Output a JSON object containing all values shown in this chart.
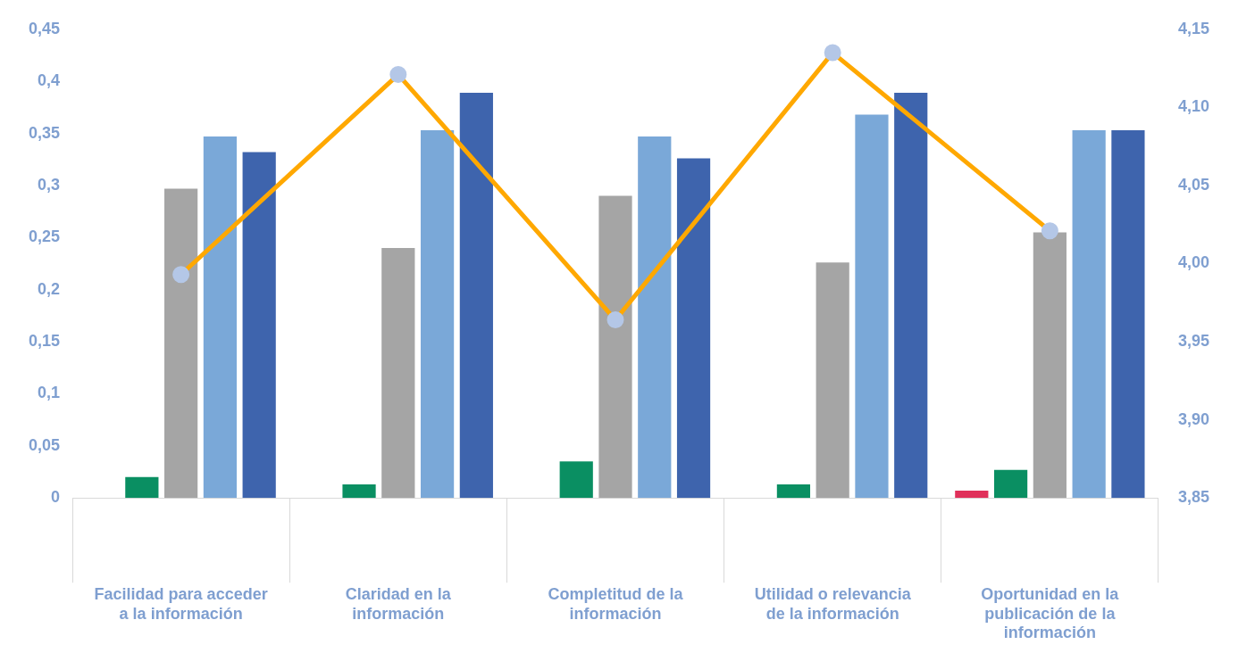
{
  "chart_data": {
    "type": "bar",
    "categories": [
      "Facilidad para acceder a la información",
      "Claridad en la información",
      "Completitud de la información",
      "Utilidad o relevancia de la información",
      "Oportunidad en la publicación de la información"
    ],
    "series": [
      {
        "color": "#e0305a",
        "values": [
          0,
          0,
          0,
          0,
          0.007
        ]
      },
      {
        "color": "#0a8f62",
        "values": [
          0.02,
          0.013,
          0.035,
          0.013,
          0.027
        ]
      },
      {
        "color": "#a5a5a5",
        "values": [
          0.297,
          0.24,
          0.29,
          0.226,
          0.255
        ]
      },
      {
        "color": "#7aa8d8",
        "values": [
          0.347,
          0.353,
          0.347,
          0.368,
          0.353
        ]
      },
      {
        "color": "#3e64ad",
        "values": [
          0.332,
          0.389,
          0.326,
          0.389,
          0.353
        ]
      },
      {
        "type": "line",
        "axis": "y2",
        "color": "#ffa800",
        "marker": "circle",
        "line_style": "solid",
        "values": [
          3.993,
          4.121,
          3.964,
          4.135,
          4.021
        ]
      }
    ],
    "ylim": [
      0,
      0.45
    ],
    "yticks": [
      0,
      {
        "value": 0.05,
        "label": "0,05"
      },
      {
        "value": 0.1,
        "label": "0,1"
      },
      {
        "value": 0.15,
        "label": "0,15"
      },
      {
        "value": 0.2,
        "label": "0,2"
      },
      {
        "value": 0.25,
        "label": "0,25"
      },
      {
        "value": 0.3,
        "label": "0,3"
      },
      {
        "value": 0.35,
        "label": "0,35"
      },
      {
        "value": 0.4,
        "label": "0,4"
      },
      {
        "value": 0.45,
        "label": "0,45"
      }
    ],
    "y2lim": [
      3.85,
      4.15
    ],
    "y2ticks": [
      {
        "value": 3.85,
        "label": "3,85"
      },
      {
        "value": 3.9,
        "label": "3,90"
      },
      {
        "value": 3.95,
        "label": "3,95"
      },
      {
        "value": 4,
        "label": "4,00"
      },
      {
        "value": 4.05,
        "label": "4,05"
      },
      {
        "value": 4.1,
        "label": "4,10"
      },
      {
        "value": 4.15,
        "label": "4,15"
      }
    ],
    "grid": false,
    "legend": false
  }
}
